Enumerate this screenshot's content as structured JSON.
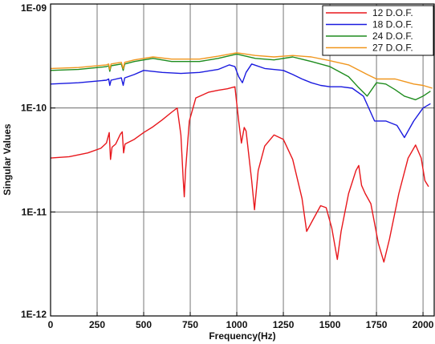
{
  "chart_data": {
    "type": "line",
    "xlabel": "Frequency(Hz)",
    "ylabel": "Singular Values",
    "xlim": [
      0,
      2060
    ],
    "ylim": [
      1e-12,
      1e-09
    ],
    "yscale": "log",
    "grid": true,
    "legend_position": "top-right",
    "x_ticks": [
      0,
      250,
      500,
      750,
      1000,
      1250,
      1500,
      1750,
      2000
    ],
    "x_tick_labels": [
      "0",
      "250",
      "500",
      "750",
      "1000",
      "1250",
      "1500",
      "1750",
      "2000"
    ],
    "y_ticks": [
      1e-12,
      1e-11,
      1e-10,
      1e-09
    ],
    "y_tick_labels": [
      "1E-12",
      "1E-11",
      "1E-10",
      "1E-09"
    ],
    "series": [
      {
        "name": "12 D.O.F.",
        "color": "#e8171c",
        "points": [
          [
            0,
            3.3e-11
          ],
          [
            100,
            3.4e-11
          ],
          [
            200,
            3.7e-11
          ],
          [
            270,
            4.1e-11
          ],
          [
            300,
            4.6e-11
          ],
          [
            315,
            5.8e-11
          ],
          [
            322,
            3.2e-11
          ],
          [
            330,
            4.2e-11
          ],
          [
            350,
            4.5e-11
          ],
          [
            375,
            5.6e-11
          ],
          [
            385,
            5.9e-11
          ],
          [
            392,
            3.7e-11
          ],
          [
            400,
            4.5e-11
          ],
          [
            450,
            5e-11
          ],
          [
            500,
            5.8e-11
          ],
          [
            550,
            6.6e-11
          ],
          [
            600,
            7.7e-11
          ],
          [
            650,
            9.1e-11
          ],
          [
            680,
            1e-10
          ],
          [
            700,
            5.5e-11
          ],
          [
            712,
            2.1e-11
          ],
          [
            718,
            1.4e-11
          ],
          [
            725,
            2.5e-11
          ],
          [
            745,
            7.5e-11
          ],
          [
            780,
            1.25e-10
          ],
          [
            850,
            1.42e-10
          ],
          [
            900,
            1.48e-10
          ],
          [
            950,
            1.53e-10
          ],
          [
            990,
            1.6e-10
          ],
          [
            1010,
            7.5e-11
          ],
          [
            1025,
            4.6e-11
          ],
          [
            1040,
            6.5e-11
          ],
          [
            1050,
            6e-11
          ],
          [
            1080,
            2e-11
          ],
          [
            1095,
            1.05e-11
          ],
          [
            1115,
            2.5e-11
          ],
          [
            1150,
            4.3e-11
          ],
          [
            1200,
            5.5e-11
          ],
          [
            1250,
            5e-11
          ],
          [
            1300,
            3.2e-11
          ],
          [
            1350,
            1.35e-11
          ],
          [
            1375,
            6.5e-12
          ],
          [
            1410,
            8.5e-12
          ],
          [
            1450,
            1.15e-11
          ],
          [
            1480,
            1.1e-11
          ],
          [
            1510,
            7e-12
          ],
          [
            1540,
            3.5e-12
          ],
          [
            1560,
            6.5e-12
          ],
          [
            1600,
            1.5e-11
          ],
          [
            1640,
            2.5e-11
          ],
          [
            1655,
            2.8e-11
          ],
          [
            1670,
            1.8e-11
          ],
          [
            1690,
            1.5e-11
          ],
          [
            1720,
            1.2e-11
          ],
          [
            1760,
            5e-12
          ],
          [
            1790,
            3.3e-12
          ],
          [
            1820,
            5.5e-12
          ],
          [
            1870,
            1.5e-11
          ],
          [
            1920,
            3.3e-11
          ],
          [
            1960,
            4.4e-11
          ],
          [
            1990,
            3.3e-11
          ],
          [
            2010,
            2e-11
          ],
          [
            2030,
            1.75e-11
          ]
        ]
      },
      {
        "name": "18 D.O.F.",
        "color": "#1a1adf",
        "points": [
          [
            0,
            1.7e-10
          ],
          [
            150,
            1.75e-10
          ],
          [
            300,
            1.85e-10
          ],
          [
            312,
            1.9e-10
          ],
          [
            318,
            1.65e-10
          ],
          [
            325,
            1.85e-10
          ],
          [
            380,
            1.95e-10
          ],
          [
            390,
            1.65e-10
          ],
          [
            398,
            1.95e-10
          ],
          [
            450,
            2.1e-10
          ],
          [
            500,
            2.3e-10
          ],
          [
            600,
            2.2e-10
          ],
          [
            700,
            2.15e-10
          ],
          [
            800,
            2.2e-10
          ],
          [
            900,
            2.35e-10
          ],
          [
            960,
            2.6e-10
          ],
          [
            990,
            2.5e-10
          ],
          [
            1010,
            2e-10
          ],
          [
            1030,
            1.75e-10
          ],
          [
            1050,
            2.2e-10
          ],
          [
            1080,
            2.65e-10
          ],
          [
            1150,
            2.4e-10
          ],
          [
            1250,
            2.3e-10
          ],
          [
            1300,
            2.1e-10
          ],
          [
            1350,
            1.9e-10
          ],
          [
            1400,
            1.75e-10
          ],
          [
            1450,
            1.65e-10
          ],
          [
            1500,
            1.6e-10
          ],
          [
            1560,
            1.6e-10
          ],
          [
            1620,
            1.55e-10
          ],
          [
            1680,
            1.3e-10
          ],
          [
            1740,
            7.5e-11
          ],
          [
            1800,
            7.5e-11
          ],
          [
            1860,
            6.8e-11
          ],
          [
            1900,
            5.2e-11
          ],
          [
            1950,
            7.5e-11
          ],
          [
            2000,
            1e-10
          ],
          [
            2040,
            1.1e-10
          ]
        ]
      },
      {
        "name": "24 D.O.F.",
        "color": "#1e8c1e",
        "points": [
          [
            0,
            2.3e-10
          ],
          [
            150,
            2.35e-10
          ],
          [
            300,
            2.5e-10
          ],
          [
            312,
            2.55e-10
          ],
          [
            318,
            2.25e-10
          ],
          [
            325,
            2.55e-10
          ],
          [
            380,
            2.65e-10
          ],
          [
            390,
            2.3e-10
          ],
          [
            398,
            2.65e-10
          ],
          [
            450,
            2.8e-10
          ],
          [
            550,
            3e-10
          ],
          [
            650,
            2.8e-10
          ],
          [
            800,
            2.8e-10
          ],
          [
            900,
            3e-10
          ],
          [
            1000,
            3.3e-10
          ],
          [
            1100,
            3e-10
          ],
          [
            1200,
            2.9e-10
          ],
          [
            1300,
            3.1e-10
          ],
          [
            1400,
            2.8e-10
          ],
          [
            1500,
            2.5e-10
          ],
          [
            1600,
            2e-10
          ],
          [
            1650,
            1.6e-10
          ],
          [
            1700,
            1.3e-10
          ],
          [
            1750,
            1.75e-10
          ],
          [
            1800,
            1.7e-10
          ],
          [
            1850,
            1.5e-10
          ],
          [
            1900,
            1.3e-10
          ],
          [
            1960,
            1.2e-10
          ],
          [
            2000,
            1.3e-10
          ],
          [
            2040,
            1.45e-10
          ]
        ]
      },
      {
        "name": "27 D.O.F.",
        "color": "#f0961e",
        "points": [
          [
            0,
            2.4e-10
          ],
          [
            150,
            2.45e-10
          ],
          [
            300,
            2.6e-10
          ],
          [
            312,
            2.65e-10
          ],
          [
            318,
            2.35e-10
          ],
          [
            325,
            2.65e-10
          ],
          [
            380,
            2.75e-10
          ],
          [
            390,
            2.4e-10
          ],
          [
            398,
            2.75e-10
          ],
          [
            450,
            2.9e-10
          ],
          [
            550,
            3.1e-10
          ],
          [
            650,
            2.95e-10
          ],
          [
            800,
            2.95e-10
          ],
          [
            900,
            3.15e-10
          ],
          [
            1000,
            3.4e-10
          ],
          [
            1100,
            3.2e-10
          ],
          [
            1200,
            3.1e-10
          ],
          [
            1300,
            3.2e-10
          ],
          [
            1400,
            3.1e-10
          ],
          [
            1500,
            2.85e-10
          ],
          [
            1600,
            2.6e-10
          ],
          [
            1700,
            2.1e-10
          ],
          [
            1750,
            1.9e-10
          ],
          [
            1850,
            1.9e-10
          ],
          [
            1950,
            1.7e-10
          ],
          [
            2000,
            1.65e-10
          ],
          [
            2050,
            1.55e-10
          ]
        ]
      }
    ]
  }
}
